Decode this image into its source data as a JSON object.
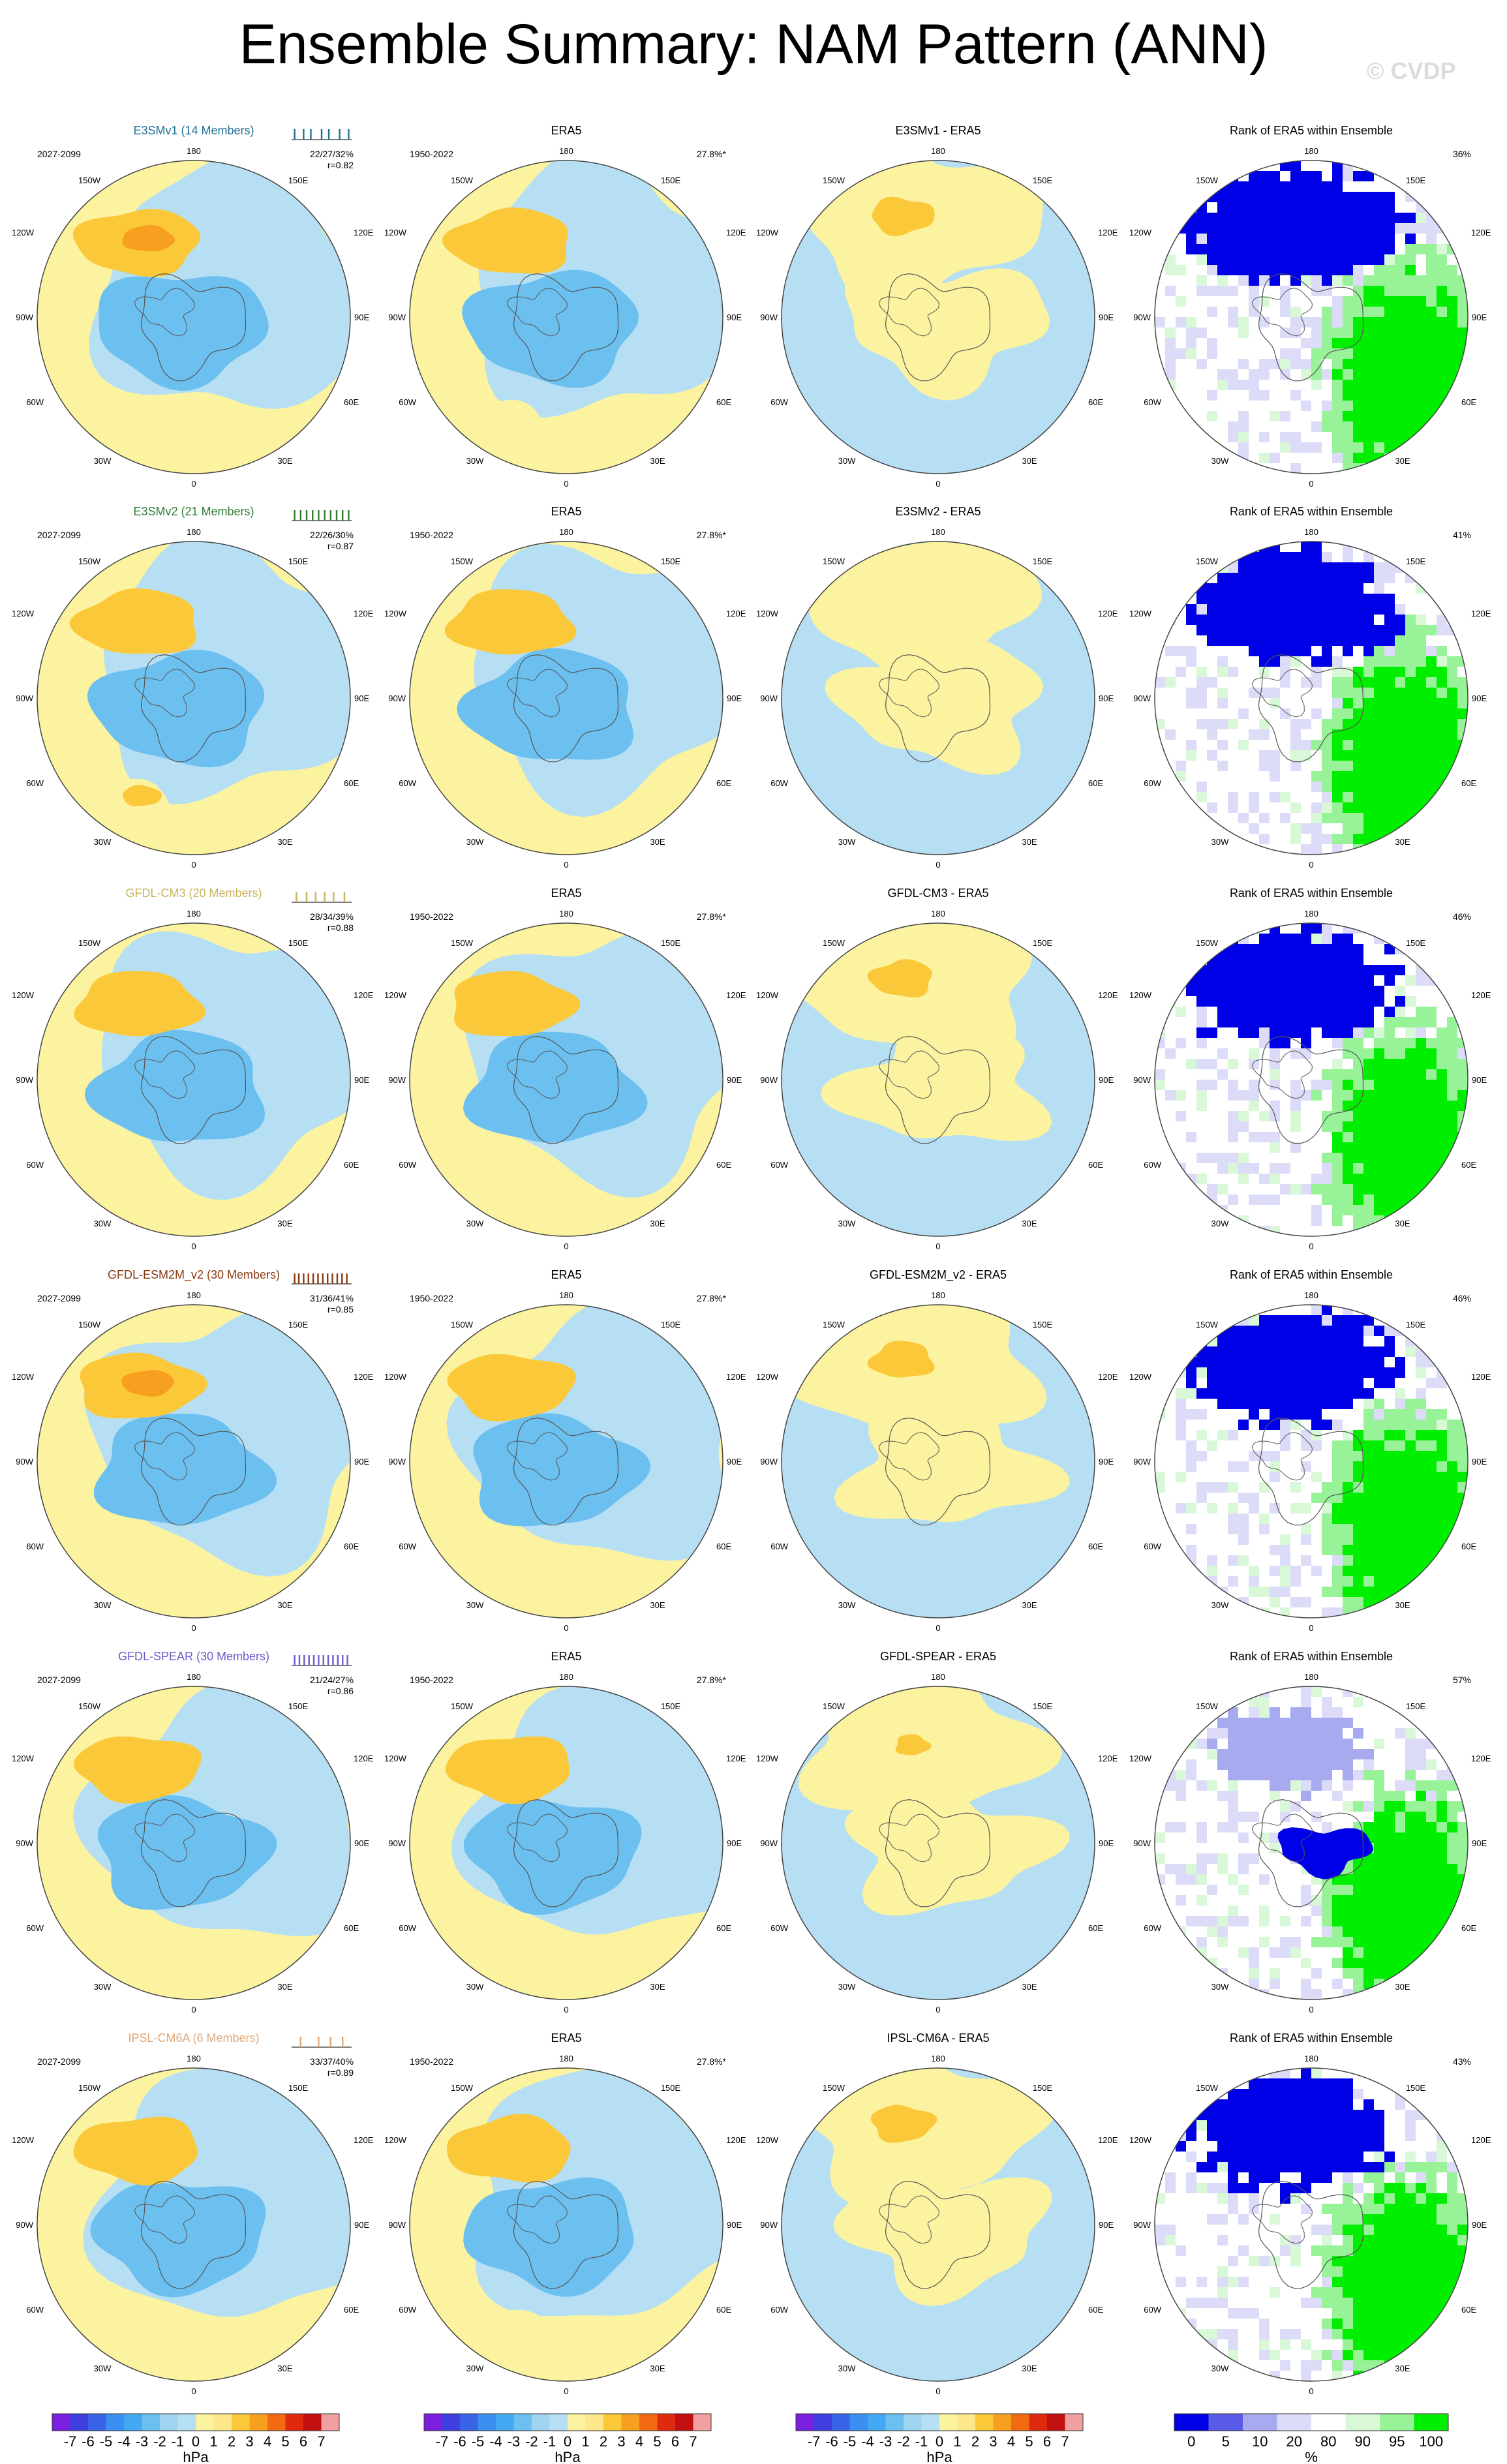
{
  "figure": {
    "title": "Ensemble Summary: NAM Pattern (ANN)",
    "watermark": "© CVDP"
  },
  "longitude_labels": {
    "top": "180",
    "bottom": "0",
    "upper_left": "150W",
    "upper_right": "150E",
    "mid_upper_left": "120W",
    "mid_upper_right": "120E",
    "left": "90W",
    "right": "90E",
    "lower_left": "60W",
    "lower_right": "60E",
    "bottom_left": "30W",
    "bottom_right": "30E"
  },
  "chart_data": {
    "type": "heatmap",
    "panel_grid": {
      "rows": 6,
      "columns": 4
    },
    "column_types": [
      "ensemble mean",
      "observations",
      "difference",
      "rank"
    ],
    "rows": [
      {
        "model": "E3SMv1 (14 Members)",
        "model_color": "#1f6f93",
        "model_period": "2027-2099",
        "stats": "22/27/32%",
        "pattern_r": "r=0.82",
        "obs_title": "ERA5",
        "obs_period": "1950-2022",
        "obs_pct": "27.8%*",
        "diff_title": "E3SMv1 - ERA5",
        "rank_title": "Rank of ERA5 within Ensemble",
        "rank_pct": "36%",
        "spread_ticks": [
          0.05,
          0.2,
          0.32,
          0.5,
          0.62,
          0.8,
          0.95
        ]
      },
      {
        "model": "E3SMv2 (21 Members)",
        "model_color": "#2e7d32",
        "model_period": "2027-2099",
        "stats": "22/26/30%",
        "pattern_r": "r=0.87",
        "obs_title": "ERA5",
        "obs_period": "1950-2022",
        "obs_pct": "27.8%*",
        "diff_title": "E3SMv2 - ERA5",
        "rank_title": "Rank of ERA5 within Ensemble",
        "rank_pct": "41%",
        "spread_ticks": [
          0.05,
          0.15,
          0.25,
          0.35,
          0.45,
          0.55,
          0.65,
          0.75,
          0.85,
          0.95
        ]
      },
      {
        "model": "GFDL-CM3 (20 Members)",
        "model_color": "#c9b45c",
        "model_period": "",
        "stats": "28/34/39%",
        "pattern_r": "r=0.88",
        "obs_title": "ERA5",
        "obs_period": "1950-2022",
        "obs_pct": "27.8%*",
        "diff_title": "GFDL-CM3 - ERA5",
        "rank_title": "Rank of ERA5 within Ensemble",
        "rank_pct": "46%",
        "spread_ticks": [
          0.08,
          0.25,
          0.4,
          0.55,
          0.7,
          0.88
        ]
      },
      {
        "model": "GFDL-ESM2M_v2 (30 Members)",
        "model_color": "#8b3a10",
        "model_period": "2027-2099",
        "stats": "31/36/41%",
        "pattern_r": "r=0.85",
        "obs_title": "ERA5",
        "obs_period": "1950-2022",
        "obs_pct": "27.8%*",
        "diff_title": "GFDL-ESM2M_v2 - ERA5",
        "rank_title": "Rank of ERA5 within Ensemble",
        "rank_pct": "46%",
        "spread_ticks": [
          0.05,
          0.12,
          0.2,
          0.28,
          0.36,
          0.44,
          0.52,
          0.6,
          0.68,
          0.76,
          0.84,
          0.92
        ]
      },
      {
        "model": "GFDL-SPEAR (30 Members)",
        "model_color": "#6a5acd",
        "model_period": "2027-2099",
        "stats": "21/24/27%",
        "pattern_r": "r=0.86",
        "obs_title": "ERA5",
        "obs_period": "1950-2022",
        "obs_pct": "27.8%*",
        "diff_title": "GFDL-SPEAR - ERA5",
        "rank_title": "Rank of ERA5 within Ensemble",
        "rank_pct": "57%",
        "spread_ticks": [
          0.05,
          0.13,
          0.21,
          0.29,
          0.37,
          0.45,
          0.53,
          0.61,
          0.69,
          0.77,
          0.85,
          0.93
        ]
      },
      {
        "model": "IPSL-CM6A (6 Members)",
        "model_color": "#e0a878",
        "model_period": "2027-2099",
        "stats": "33/37/40%",
        "pattern_r": "r=0.89",
        "obs_title": "ERA5",
        "obs_period": "1950-2022",
        "obs_pct": "27.8%*",
        "diff_title": "IPSL-CM6A - ERA5",
        "rank_title": "Rank of ERA5 within Ensemble",
        "rank_pct": "43%",
        "spread_ticks": [
          0.15,
          0.45,
          0.65,
          0.85
        ]
      }
    ],
    "colorbar_hpa": {
      "unit": "hPa",
      "labels": [
        "-7",
        "-6",
        "-5",
        "-4",
        "-3",
        "-2",
        "-1",
        "0",
        "1",
        "2",
        "3",
        "4",
        "5",
        "6",
        "7"
      ],
      "colors": [
        "#7a1fe0",
        "#3f3fe0",
        "#3a64e8",
        "#3a8ff0",
        "#42a9f2",
        "#6cc0f0",
        "#9fd4f0",
        "#b6dff4",
        "#fbf3a0",
        "#fde78a",
        "#fbc83a",
        "#f7a020",
        "#f26a12",
        "#e02a10",
        "#c21010",
        "#f0a0a0"
      ]
    },
    "colorbar_rank": {
      "unit": "%",
      "labels": [
        "0",
        "5",
        "10",
        "20",
        "80",
        "90",
        "95",
        "100"
      ],
      "colors": [
        "#0000e6",
        "#5a5ae8",
        "#a8aaf0",
        "#dcdcf8",
        "#ffffff",
        "#d8f8d8",
        "#98f298",
        "#00ee00"
      ]
    }
  }
}
